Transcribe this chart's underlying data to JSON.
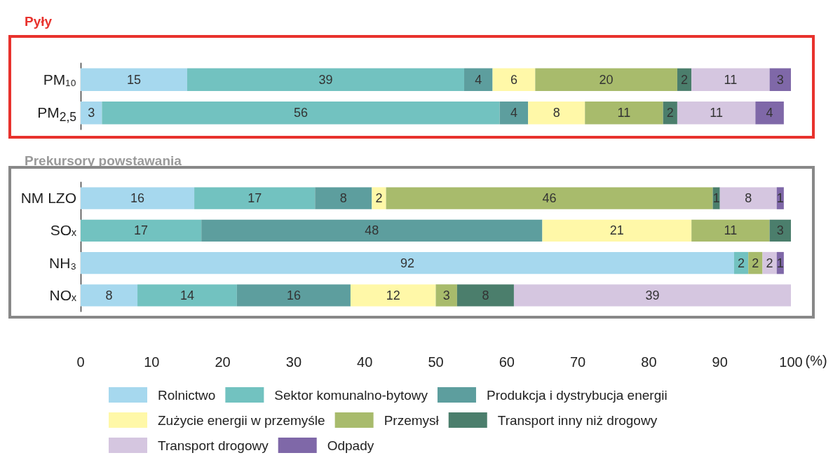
{
  "chart_data": [
    {
      "type": "bar",
      "orientation": "horizontal",
      "stacked": true,
      "title": "Pyły",
      "categories": [
        "PM₁₀",
        "PM$_{2,5}$"
      ],
      "xlim": [
        0,
        100
      ],
      "xticks": [
        0,
        10,
        20,
        30,
        40,
        50,
        60,
        70,
        80,
        90,
        100
      ],
      "tick_labels": "y",
      "grid": false,
      "data_labels": true,
      "series": [
        {
          "color": "#a6d8ee",
          "values": [
            15,
            3
          ]
        },
        {
          "color": "#72c2c0",
          "values": [
            39,
            56
          ]
        },
        {
          "color": "#5d9e9e",
          "values": [
            4,
            4
          ]
        },
        {
          "color": "#fff8a8",
          "values": [
            6,
            8
          ]
        },
        {
          "color": "#a8bb6c",
          "values": [
            20,
            11
          ]
        },
        {
          "color": "#4b7e6c",
          "values": [
            2,
            2
          ]
        },
        {
          "color": "#d5c6e0",
          "values": [
            11,
            11
          ]
        },
        {
          "color": "#7f68a8",
          "values": [
            3,
            4
          ]
        }
      ]
    },
    {
      "type": "bar",
      "orientation": "horizontal",
      "stacked": true,
      "title": "Prekursory powstawania",
      "xlabel": "(%)",
      "categories": [
        "NM LZO",
        "SOₓ",
        "NH₃",
        "NOₓ"
      ],
      "xlim": [
        0,
        100
      ],
      "xticks": [
        0,
        10,
        20,
        30,
        40,
        50,
        60,
        70,
        80,
        90,
        100
      ],
      "grid": false,
      "legend": "bottom",
      "data_labels": true,
      "series": [
        {
          "name": "Rolnictwo",
          "color": "#a6d8ee",
          "values": [
            16,
            null,
            92,
            8
          ]
        },
        {
          "name": "Sektor komunalno-bytowy",
          "color": "#72c2c0",
          "values": [
            17,
            17,
            2,
            14
          ]
        },
        {
          "name": "Produkcja i dystrybucja energii",
          "color": "#5d9e9e",
          "values": [
            8,
            48,
            null,
            16
          ]
        },
        {
          "name": "Zużycie energii w przemyśle",
          "color": "#fff8a8",
          "values": [
            2,
            21,
            null,
            12
          ]
        },
        {
          "name": "Przemysł",
          "color": "#a8bb6c",
          "values": [
            46,
            11,
            2,
            3
          ]
        },
        {
          "name": "Transport inny niż drogowy",
          "color": "#4b7e6c",
          "values": [
            1,
            3,
            null,
            8
          ]
        },
        {
          "name": "Transport drogowy",
          "color": "#d5c6e0",
          "values": [
            8,
            null,
            2,
            39
          ]
        },
        {
          "name": "Odpady",
          "color": "#7f68a8",
          "values": [
            1,
            null,
            1,
            null
          ]
        }
      ]
    }
  ]
}
